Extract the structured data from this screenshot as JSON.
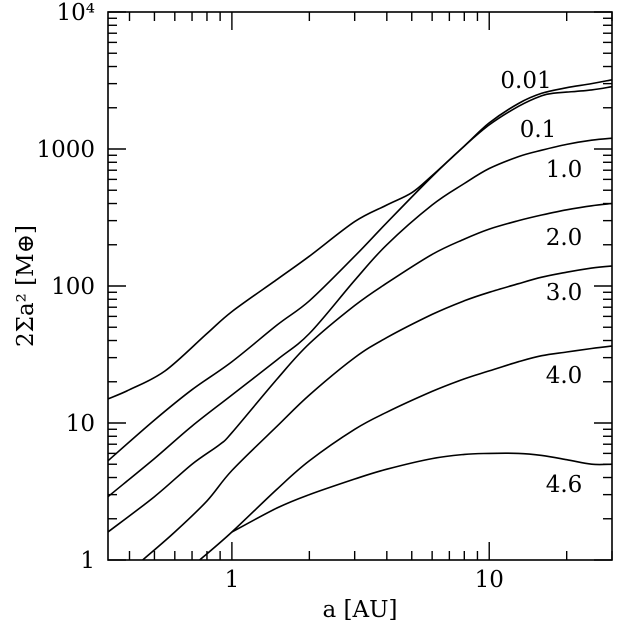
{
  "chart_data": {
    "type": "line",
    "xlabel": "a [AU]",
    "ylabel": "2Σa² [M⊕]",
    "xscale": "log",
    "yscale": "log",
    "xlim": [
      0.33,
      30
    ],
    "ylim": [
      1,
      10000
    ],
    "grid": false,
    "x_major_ticks": [
      {
        "value": 1,
        "label": "1"
      },
      {
        "value": 10,
        "label": "10"
      }
    ],
    "y_major_ticks": [
      {
        "value": 1,
        "label": "1"
      },
      {
        "value": 10,
        "label": "10"
      },
      {
        "value": 100,
        "label": "100"
      },
      {
        "value": 1000,
        "label": "1000"
      },
      {
        "value": 10000,
        "label": "10⁴"
      }
    ],
    "series": [
      {
        "name": "0.01",
        "x": [
          0.33,
          0.4,
          0.55,
          0.8,
          1.0,
          1.5,
          2.0,
          3.0,
          4.0,
          5.0,
          6.0,
          8.0,
          10.0,
          13.0,
          16.0,
          20.0,
          25.0,
          30.0
        ],
        "y": [
          15,
          17.5,
          24,
          45,
          65,
          112,
          165,
          295,
          390,
          480,
          640,
          1050,
          1550,
          2150,
          2550,
          2800,
          3000,
          3200
        ]
      },
      {
        "name": "0.1",
        "x": [
          0.33,
          0.5,
          0.7,
          1.0,
          1.5,
          2.0,
          3.0,
          4.0,
          6.0,
          8.0,
          10.0,
          13.0,
          16.0,
          18.0,
          20.0,
          25.0,
          30.0
        ],
        "y": [
          5.3,
          10.5,
          17.5,
          28,
          52,
          78,
          165,
          290,
          630,
          1050,
          1500,
          2050,
          2450,
          2560,
          2600,
          2700,
          2850
        ]
      },
      {
        "name": "1.0",
        "x": [
          0.33,
          0.5,
          0.7,
          1.0,
          1.5,
          2.0,
          3.0,
          4.0,
          6.0,
          8.0,
          10.0,
          13.0,
          16.0,
          20.0,
          25.0,
          30.0
        ],
        "y": [
          2.9,
          5.5,
          9.5,
          16,
          29,
          45,
          110,
          200,
          390,
          560,
          720,
          880,
          980,
          1080,
          1160,
          1200
        ]
      },
      {
        "name": "2.0",
        "x": [
          0.33,
          0.5,
          0.7,
          0.9,
          1.0,
          1.5,
          2.0,
          3.0,
          4.0,
          6.0,
          8.0,
          10.0,
          13.0,
          16.0,
          20.0,
          25.0,
          30.0
        ],
        "y": [
          1.6,
          2.9,
          5.0,
          7.0,
          8.5,
          21,
          38,
          72,
          105,
          170,
          220,
          260,
          300,
          330,
          360,
          385,
          400
        ]
      },
      {
        "name": "3.0",
        "x": [
          0.45,
          0.6,
          0.8,
          1.0,
          1.5,
          2.0,
          3.0,
          4.0,
          6.0,
          8.0,
          10.0,
          13.0,
          16.0,
          20.0,
          25.0,
          30.0
        ],
        "y": [
          1.0,
          1.6,
          2.7,
          4.5,
          9.5,
          16,
          30,
          42,
          62,
          78,
          90,
          104,
          116,
          126,
          135,
          140
        ]
      },
      {
        "name": "4.0",
        "x": [
          0.75,
          1.0,
          1.5,
          2.0,
          3.0,
          4.0,
          6.0,
          8.0,
          10.0,
          13.0,
          16.0,
          20.0,
          25.0,
          30.0
        ],
        "y": [
          1.0,
          1.6,
          3.3,
          5.3,
          9.0,
          12,
          17,
          21,
          24,
          28,
          31,
          33,
          35,
          36.5
        ]
      },
      {
        "name": "4.6",
        "x": [
          1.0,
          1.5,
          2.0,
          3.0,
          4.0,
          6.0,
          8.0,
          10.0,
          13.0,
          16.0,
          20.0,
          25.0,
          30.0
        ],
        "y": [
          1.6,
          2.4,
          3.0,
          3.9,
          4.6,
          5.5,
          5.9,
          6.0,
          6.0,
          5.8,
          5.4,
          5.0,
          5.0
        ]
      }
    ]
  }
}
